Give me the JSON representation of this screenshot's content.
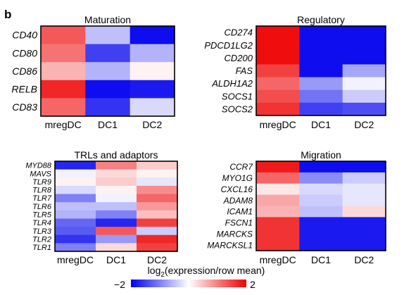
{
  "panel_label": "b",
  "colorbar": {
    "label_prefix": "log",
    "label_sub": "2",
    "label_suffix": "(expression/row mean)",
    "min_label": "−2",
    "max_label": "2",
    "min": -2,
    "max": 2,
    "low_color": "#0000ee",
    "mid_color": "#ffffff",
    "high_color": "#ee0000"
  },
  "chart_data": [
    {
      "type": "heatmap",
      "title": "Maturation",
      "columns": [
        "mregDC",
        "DC1",
        "DC2"
      ],
      "rows": [
        "CD40",
        "CD80",
        "CD86",
        "RELB",
        "CD83"
      ],
      "values": [
        [
          1.3,
          -0.5,
          -1.9
        ],
        [
          1.1,
          -1.5,
          -0.6
        ],
        [
          0.6,
          -0.6,
          0.1
        ],
        [
          1.7,
          -1.9,
          -1.8
        ],
        [
          1.2,
          -1.6,
          -0.3
        ]
      ]
    },
    {
      "type": "heatmap",
      "title": "Regulatory",
      "columns": [
        "mregDC",
        "DC1",
        "DC2"
      ],
      "rows": [
        "CD274",
        "PDCD1LG2",
        "CD200",
        "FAS",
        "ALDH1A2",
        "SOCS1",
        "SOCS2"
      ],
      "values": [
        [
          1.9,
          -1.9,
          -1.9
        ],
        [
          1.9,
          -1.9,
          -1.9
        ],
        [
          1.9,
          -1.9,
          -1.9
        ],
        [
          1.5,
          -1.9,
          -0.7
        ],
        [
          1.2,
          -0.8,
          -0.1
        ],
        [
          1.4,
          -1.1,
          -0.4
        ],
        [
          1.6,
          -1.5,
          -1.4
        ]
      ]
    },
    {
      "type": "heatmap",
      "title": "TRLs and adaptors",
      "columns": [
        "mregDC",
        "DC1",
        "DC2"
      ],
      "rows": [
        "MYD88",
        "MAVS",
        "TLR9",
        "TLR8",
        "TLR7",
        "TLR6",
        "TLR5",
        "TLR4",
        "TLR3",
        "TLR2",
        "TLR1"
      ],
      "values": [
        [
          -1.7,
          1.0,
          0.4
        ],
        [
          -0.1,
          0.3,
          0.1
        ],
        [
          0.1,
          0.4,
          -0.2
        ],
        [
          -0.3,
          0.1,
          0.9
        ],
        [
          -1.0,
          -0.1,
          1.2
        ],
        [
          -0.5,
          -0.5,
          0.8
        ],
        [
          -0.6,
          -1.0,
          0.5
        ],
        [
          -1.2,
          -1.7,
          1.5
        ],
        [
          -1.3,
          1.3,
          -0.4
        ],
        [
          -1.6,
          -0.8,
          1.7
        ],
        [
          -1.0,
          0.3,
          1.5
        ]
      ]
    },
    {
      "type": "heatmap",
      "title": "Migration",
      "columns": [
        "mregDC",
        "DC1",
        "DC2"
      ],
      "rows": [
        "CCR7",
        "MYO1G",
        "CXCL16",
        "ADAM8",
        "ICAM1",
        "FSCN1",
        "MARCKS",
        "MARCKSL1"
      ],
      "values": [
        [
          1.8,
          -1.9,
          -1.9
        ],
        [
          1.2,
          -0.9,
          -0.4
        ],
        [
          0.2,
          -0.3,
          -0.2
        ],
        [
          0.7,
          -0.4,
          -0.2
        ],
        [
          0.6,
          -0.5,
          0.3
        ],
        [
          1.6,
          -1.8,
          -1.8
        ],
        [
          1.6,
          -1.8,
          -1.8
        ],
        [
          1.6,
          -1.8,
          -1.8
        ]
      ]
    }
  ]
}
